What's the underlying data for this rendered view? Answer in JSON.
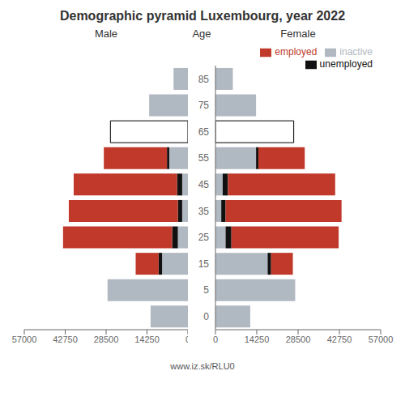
{
  "chart_data": [
    {
      "type": "bar",
      "title": "Demographic pyramid Luxembourg, year 2022",
      "subtitle": "Male",
      "orientation": "horizontal",
      "stacked": true,
      "categories": [
        "0",
        "5",
        "15",
        "25",
        "35",
        "45",
        "55",
        "65",
        "75",
        "85"
      ],
      "series": [
        {
          "name": "inactive",
          "color": "#b0b8c1",
          "colors": [
            "#b0b8c1",
            "#b0b8c1",
            "#b0b8c1",
            "#b0b8c1",
            "#b0b8c1",
            "#b0b8c1",
            "#b0b8c1",
            "#ffffff",
            "#b0b8c1",
            "#b0b8c1"
          ],
          "values": [
            13000,
            28000,
            9000,
            3500,
            2000,
            2000,
            6500,
            27000,
            13500,
            5000
          ]
        },
        {
          "name": "unemployed",
          "color": "#111111",
          "values": [
            0,
            0,
            1200,
            2000,
            1500,
            1800,
            800,
            0,
            0,
            0
          ]
        },
        {
          "name": "employed",
          "color": "#c0392b",
          "values": [
            0,
            0,
            8000,
            38000,
            38000,
            36000,
            22000,
            0,
            0,
            0
          ]
        }
      ],
      "xlim": [
        57000,
        0
      ],
      "xticks": [
        0,
        14250,
        28500,
        42750,
        57000
      ],
      "tick_labels": "x",
      "annotations": [
        "www.iz.sk/RLU0"
      ]
    },
    {
      "type": "bar",
      "subtitle": "Female",
      "ylabel": "Age",
      "orientation": "horizontal",
      "stacked": true,
      "categories": [
        "0",
        "5",
        "15",
        "25",
        "35",
        "45",
        "55",
        "65",
        "75",
        "85"
      ],
      "series": [
        {
          "name": "inactive",
          "color": "#b0b8c1",
          "colors": [
            "#b0b8c1",
            "#b0b8c1",
            "#b0b8c1",
            "#b0b8c1",
            "#b0b8c1",
            "#b0b8c1",
            "#b0b8c1",
            "#ffffff",
            "#b0b8c1",
            "#b0b8c1"
          ],
          "values": [
            12000,
            27500,
            18000,
            3500,
            2000,
            2500,
            14000,
            27000,
            14000,
            6000
          ]
        },
        {
          "name": "unemployed",
          "color": "#111111",
          "values": [
            0,
            0,
            1200,
            2000,
            1500,
            1800,
            800,
            0,
            0,
            0
          ]
        },
        {
          "name": "employed",
          "color": "#c0392b",
          "values": [
            0,
            0,
            7500,
            37000,
            40000,
            37000,
            16000,
            0,
            0,
            0
          ]
        }
      ],
      "xlim": [
        0,
        57000
      ],
      "xticks": [
        0,
        14250,
        28500,
        42750,
        57000
      ],
      "legend": "upper right"
    }
  ]
}
